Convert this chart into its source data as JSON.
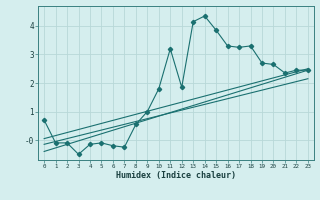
{
  "xlabel": "Humidex (Indice chaleur)",
  "xlim": [
    -0.5,
    23.5
  ],
  "ylim": [
    -0.7,
    4.7
  ],
  "xticks": [
    0,
    1,
    2,
    3,
    4,
    5,
    6,
    7,
    8,
    9,
    10,
    11,
    12,
    13,
    14,
    15,
    16,
    17,
    18,
    19,
    20,
    21,
    22,
    23
  ],
  "yticks": [
    0,
    1,
    2,
    3,
    4
  ],
  "ytick_labels": [
    "-0",
    "1",
    "2",
    "3",
    "4"
  ],
  "background_color": "#d5eeee",
  "grid_color": "#b8d8d8",
  "line_color": "#1a7070",
  "main_data_x": [
    0,
    1,
    2,
    3,
    4,
    5,
    6,
    7,
    8,
    9,
    10,
    11,
    12,
    13,
    14,
    15,
    16,
    17,
    18,
    19,
    20,
    21,
    22,
    23
  ],
  "main_data_y": [
    0.7,
    -0.1,
    -0.1,
    -0.5,
    -0.15,
    -0.1,
    -0.2,
    -0.25,
    0.55,
    1.0,
    1.8,
    3.2,
    1.85,
    4.15,
    4.35,
    3.85,
    3.3,
    3.25,
    3.3,
    2.7,
    2.65,
    2.35,
    2.45,
    2.45
  ],
  "line1_x": [
    0,
    23
  ],
  "line1_y": [
    0.05,
    2.5
  ],
  "line2_x": [
    0,
    23
  ],
  "line2_y": [
    -0.15,
    2.15
  ],
  "line3_x": [
    0,
    23
  ],
  "line3_y": [
    -0.4,
    2.45
  ]
}
